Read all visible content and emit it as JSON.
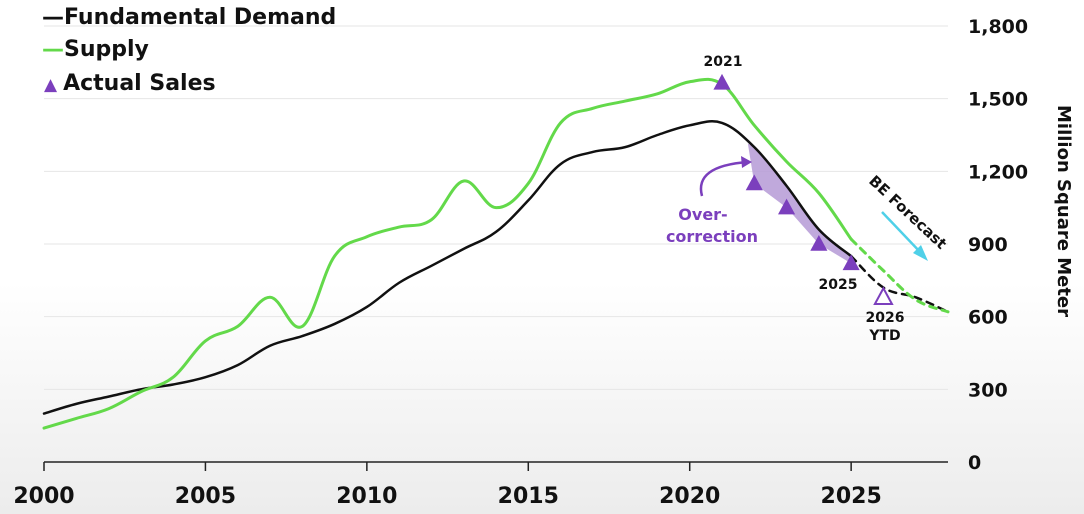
{
  "chart_data": {
    "type": "line",
    "ylabel": "Million Square Meter",
    "xlim": [
      2000,
      2028
    ],
    "ylim": [
      0,
      1800
    ],
    "yticks": [
      0,
      300,
      600,
      900,
      1200,
      1500,
      1800
    ],
    "ytick_labels": [
      "0",
      "300",
      "600",
      "900",
      "1,200",
      "1,500",
      "1,800"
    ],
    "xticks": [
      2000,
      2005,
      2010,
      2015,
      2020,
      2025
    ],
    "xtick_labels": [
      "2000",
      "2005",
      "2010",
      "2015",
      "2020",
      "2025"
    ],
    "legend": {
      "placement": "top-left",
      "entries": [
        "Fundamental Demand",
        "Supply",
        "Actual Sales"
      ],
      "prefixes": [
        "—",
        "—",
        "▲"
      ]
    },
    "series": [
      {
        "name": "Fundamental Demand",
        "color": "#111111",
        "style": "solid",
        "x": [
          2000,
          2001,
          2002,
          2003,
          2004,
          2005,
          2006,
          2007,
          2008,
          2009,
          2010,
          2011,
          2012,
          2013,
          2014,
          2015,
          2016,
          2017,
          2018,
          2019,
          2020,
          2021,
          2022,
          2023,
          2024,
          2025
        ],
        "y": [
          200,
          240,
          270,
          300,
          320,
          350,
          400,
          480,
          520,
          570,
          640,
          740,
          810,
          880,
          950,
          1080,
          1230,
          1280,
          1300,
          1350,
          1390,
          1400,
          1300,
          1140,
          960,
          850
        ]
      },
      {
        "name": "Fundamental Demand (forecast)",
        "color": "#111111",
        "style": "dashed",
        "x": [
          2025,
          2026,
          2027,
          2028
        ],
        "y": [
          850,
          720,
          680,
          620
        ]
      },
      {
        "name": "Supply",
        "color": "#63d94a",
        "style": "solid",
        "x": [
          2000,
          2001,
          2002,
          2003,
          2004,
          2005,
          2006,
          2007,
          2008,
          2009,
          2010,
          2011,
          2012,
          2013,
          2014,
          2015,
          2016,
          2017,
          2018,
          2019,
          2020,
          2021,
          2022,
          2023,
          2024,
          2025
        ],
        "y": [
          140,
          180,
          220,
          290,
          350,
          500,
          560,
          680,
          560,
          850,
          930,
          970,
          1000,
          1160,
          1050,
          1150,
          1400,
          1460,
          1490,
          1520,
          1570,
          1560,
          1390,
          1240,
          1110,
          920
        ]
      },
      {
        "name": "Supply (forecast)",
        "color": "#63d94a",
        "style": "dashed",
        "x": [
          2025,
          2026,
          2027,
          2028
        ],
        "y": [
          920,
          790,
          670,
          620
        ]
      },
      {
        "name": "Actual Sales",
        "color": "#7b3fbd",
        "style": "markers",
        "x": [
          2021,
          2022,
          2023,
          2024,
          2025
        ],
        "y": [
          1565,
          1150,
          1050,
          900,
          820
        ]
      },
      {
        "name": "Actual Sales (2026 YTD)",
        "color": "#7b3fbd",
        "style": "hollow-marker",
        "x": [
          2026
        ],
        "y": [
          680
        ]
      }
    ],
    "annotations": {
      "label_2021": "2021",
      "label_2025": "2025",
      "label_2026": "2026",
      "label_ytd": "YTD",
      "overcorrection_line1": "Over-",
      "overcorrection_line2": "correction",
      "forecast_label": "BE Forecast"
    },
    "colors": {
      "demand": "#111111",
      "supply": "#63d94a",
      "sales": "#7b3fbd",
      "shade": "#b59ad6",
      "forecast_arrow": "#4fd0e8"
    },
    "grid": true
  }
}
